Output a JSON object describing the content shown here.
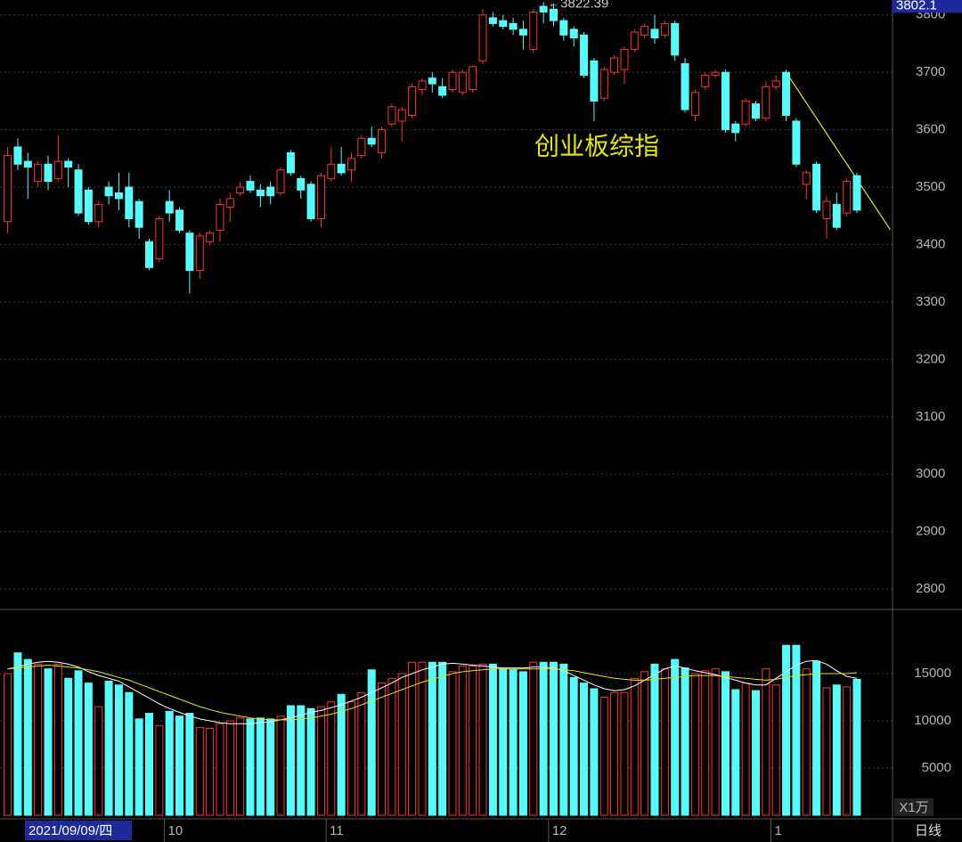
{
  "chart_data": [
    {
      "type": "candlestick",
      "title": "创业板综指",
      "open": [
        3440,
        3570,
        3545,
        3510,
        3540,
        3515,
        3545,
        3530,
        3495,
        3440,
        3500,
        3490,
        3500,
        3475,
        3405,
        3375,
        3475,
        3460,
        3420,
        3355,
        3405,
        3425,
        3465,
        3490,
        3510,
        3495,
        3500,
        3490,
        3560,
        3515,
        3505,
        3445,
        3515,
        3540,
        3530,
        3555,
        3585,
        3560,
        3610,
        3615,
        3625,
        3670,
        3690,
        3675,
        3670,
        3665,
        3670,
        3720,
        3795,
        3790,
        3785,
        3775,
        3740,
        3815,
        3810,
        3790,
        3775,
        3765,
        3720,
        3655,
        3700,
        3705,
        3740,
        3765,
        3775,
        3765,
        3785,
        3715,
        3625,
        3675,
        3695,
        3700,
        3610,
        3610,
        3645,
        3620,
        3675,
        3700,
        3615,
        3505,
        3540,
        3445,
        3470,
        3455,
        3520
      ],
      "high": [
        3570,
        3585,
        3560,
        3545,
        3555,
        3590,
        3550,
        3540,
        3500,
        3475,
        3510,
        3525,
        3525,
        3480,
        3410,
        3450,
        3495,
        3465,
        3425,
        3420,
        3425,
        3480,
        3490,
        3510,
        3520,
        3505,
        3510,
        3535,
        3565,
        3520,
        3510,
        3525,
        3570,
        3570,
        3560,
        3590,
        3605,
        3605,
        3645,
        3640,
        3680,
        3690,
        3700,
        3690,
        3705,
        3705,
        3712,
        3810,
        3805,
        3800,
        3795,
        3790,
        3810,
        3822.39,
        3820,
        3795,
        3780,
        3770,
        3725,
        3710,
        3730,
        3745,
        3775,
        3785,
        3800,
        3790,
        3790,
        3725,
        3670,
        3700,
        3705,
        3705,
        3615,
        3655,
        3650,
        3685,
        3695,
        3705,
        3620,
        3530,
        3545,
        3485,
        3490,
        3515,
        3525
      ],
      "low": [
        3420,
        3530,
        3480,
        3500,
        3495,
        3510,
        3500,
        3450,
        3435,
        3430,
        3470,
        3460,
        3430,
        3410,
        3355,
        3370,
        3440,
        3420,
        3315,
        3340,
        3400,
        3405,
        3440,
        3485,
        3490,
        3465,
        3470,
        3485,
        3520,
        3480,
        3440,
        3430,
        3510,
        3520,
        3510,
        3550,
        3570,
        3550,
        3605,
        3580,
        3620,
        3660,
        3665,
        3655,
        3665,
        3660,
        3665,
        3715,
        3780,
        3775,
        3765,
        3740,
        3735,
        3785,
        3780,
        3755,
        3745,
        3690,
        3615,
        3650,
        3695,
        3680,
        3735,
        3760,
        3750,
        3760,
        3720,
        3630,
        3615,
        3670,
        3690,
        3595,
        3580,
        3605,
        3615,
        3615,
        3670,
        3615,
        3535,
        3480,
        3455,
        3410,
        3425,
        3450,
        3455
      ],
      "close": [
        3555,
        3540,
        3535,
        3540,
        3510,
        3545,
        3535,
        3455,
        3440,
        3470,
        3485,
        3480,
        3445,
        3430,
        3360,
        3445,
        3455,
        3425,
        3355,
        3415,
        3420,
        3470,
        3480,
        3500,
        3495,
        3485,
        3485,
        3530,
        3525,
        3495,
        3445,
        3520,
        3540,
        3525,
        3550,
        3585,
        3575,
        3600,
        3640,
        3635,
        3675,
        3685,
        3680,
        3660,
        3700,
        3700,
        3710,
        3800,
        3785,
        3780,
        3775,
        3765,
        3805,
        3805,
        3790,
        3765,
        3760,
        3695,
        3650,
        3705,
        3725,
        3740,
        3770,
        3780,
        3760,
        3785,
        3730,
        3635,
        3665,
        3695,
        3700,
        3600,
        3595,
        3650,
        3620,
        3675,
        3685,
        3625,
        3540,
        3525,
        3460,
        3475,
        3430,
        3510,
        3460
      ],
      "up_color": "#ff3030",
      "down_color": "#54fcfc",
      "ylim": [
        2766,
        3826
      ],
      "yticks": [
        2800,
        2900,
        3000,
        3100,
        3200,
        3300,
        3400,
        3500,
        3600,
        3700,
        3800
      ],
      "grid": true,
      "max_index": 53,
      "cursor_value": 3802.1,
      "trendline": {
        "color": "#e6e600",
        "from": [
          77,
          3700
        ],
        "to": [
          87.3,
          3426
        ]
      }
    },
    {
      "type": "bar",
      "categories": [
        null,
        null,
        null,
        null,
        null,
        null,
        null,
        null,
        null,
        null,
        null,
        null,
        null,
        null,
        null,
        null,
        "10",
        null,
        null,
        null,
        null,
        null,
        null,
        null,
        null,
        null,
        null,
        null,
        null,
        null,
        null,
        null,
        "11",
        null,
        null,
        null,
        null,
        null,
        null,
        null,
        null,
        null,
        null,
        null,
        null,
        null,
        null,
        null,
        null,
        null,
        null,
        null,
        null,
        null,
        "12",
        null,
        null,
        null,
        null,
        null,
        null,
        null,
        null,
        null,
        null,
        null,
        null,
        null,
        null,
        null,
        null,
        null,
        null,
        null,
        null,
        null,
        "1",
        null,
        null,
        null,
        null,
        null,
        null,
        null,
        null
      ],
      "values": [
        15000,
        17200,
        16500,
        16000,
        15500,
        16000,
        14500,
        15300,
        14000,
        11500,
        14200,
        13800,
        13000,
        10200,
        10800,
        9500,
        11000,
        10500,
        10800,
        9300,
        9200,
        9700,
        10000,
        10300,
        10200,
        10300,
        10200,
        10500,
        11600,
        11600,
        11300,
        11500,
        12000,
        12800,
        12000,
        13000,
        15400,
        14000,
        14500,
        15000,
        16200,
        16200,
        16200,
        16200,
        15200,
        15800,
        15800,
        16000,
        16000,
        15500,
        15400,
        15200,
        16200,
        16200,
        16200,
        16000,
        14600,
        14000,
        13400,
        12500,
        13000,
        13000,
        14500,
        15200,
        16000,
        15500,
        16500,
        15600,
        15000,
        15300,
        15500,
        15200,
        13300,
        14000,
        13200,
        15500,
        13800,
        18000,
        18000,
        15500,
        16300,
        13500,
        13800,
        13600,
        14400
      ],
      "lines": [
        {
          "color": "#ffffff",
          "values": [
            15500,
            15700,
            16000,
            16200,
            16300,
            16200,
            16000,
            15700,
            15200,
            14800,
            14500,
            14200,
            13600,
            13000,
            12400,
            11800,
            11300,
            10900,
            10500,
            10200,
            10000,
            9800,
            9700,
            9700,
            9700,
            9800,
            9900,
            10100,
            10300,
            10600,
            10900,
            11100,
            11400,
            11700,
            12100,
            12500,
            13000,
            13500,
            14000,
            14600,
            15000,
            15400,
            15700,
            16000,
            16100,
            16000,
            15900,
            15800,
            15700,
            15600,
            15600,
            15600,
            15700,
            15700,
            15600,
            15300,
            14800,
            14300,
            13800,
            13400,
            13200,
            13300,
            13700,
            14300,
            14900,
            15500,
            15800,
            15600,
            15300,
            15100,
            14900,
            14600,
            14300,
            14000,
            13800,
            13800,
            14500,
            15200,
            15900,
            16300,
            16400,
            16000,
            15300,
            14700,
            14500
          ]
        },
        {
          "color": "#e6e600",
          "values": [
            15500,
            15600,
            15700,
            15800,
            15900,
            15800,
            15700,
            15600,
            15400,
            15200,
            14900,
            14600,
            14300,
            13900,
            13500,
            13100,
            12700,
            12300,
            11900,
            11500,
            11200,
            10900,
            10700,
            10500,
            10300,
            10200,
            10100,
            10100,
            10100,
            10200,
            10300,
            10500,
            10700,
            11000,
            11300,
            11700,
            12100,
            12500,
            12900,
            13300,
            13700,
            14100,
            14400,
            14700,
            15000,
            15200,
            15300,
            15400,
            15500,
            15500,
            15500,
            15500,
            15500,
            15500,
            15500,
            15400,
            15300,
            15100,
            14900,
            14700,
            14500,
            14400,
            14300,
            14300,
            14400,
            14500,
            14600,
            14700,
            14800,
            14800,
            14800,
            14700,
            14600,
            14500,
            14400,
            14300,
            14400,
            14600,
            14800,
            14900,
            15000,
            15000,
            15000,
            15000,
            15100
          ]
        }
      ],
      "ylim": [
        0,
        21700
      ],
      "yticks": [
        5000,
        10000,
        15000
      ],
      "grid": true,
      "unit_label": "X1万",
      "cursor_date": "2021/09/09/四",
      "period": "日线"
    }
  ]
}
